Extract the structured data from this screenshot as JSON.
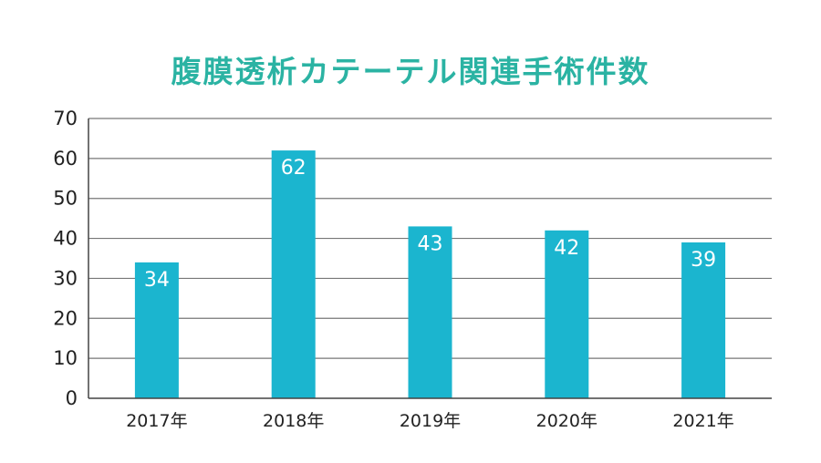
{
  "chart_data": {
    "type": "bar",
    "title": "腹膜透析カテーテル関連手術件数",
    "categories": [
      "2017年",
      "2018年",
      "2019年",
      "2020年",
      "2021年"
    ],
    "values": [
      34,
      62,
      43,
      42,
      39
    ],
    "ylim": [
      0,
      70
    ],
    "yticks": [
      0,
      10,
      20,
      30,
      40,
      50,
      60,
      70
    ],
    "xlabel": "",
    "ylabel": "",
    "grid": true,
    "data_labels": true,
    "legend": "none"
  },
  "colors": {
    "bar": "#1bb5cf",
    "title": "#2bb3a3",
    "grid": "#777777",
    "axis": "#444444"
  }
}
